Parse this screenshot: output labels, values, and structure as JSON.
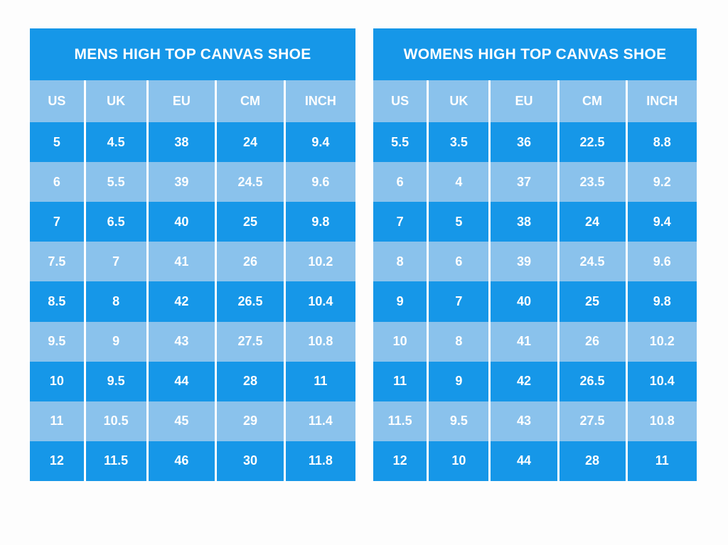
{
  "colors": {
    "primary_blue": "#1697e8",
    "light_blue": "#8ac2ec",
    "divider_white": "#ffffff",
    "text_white": "#ffffff",
    "page_background": "#fdfdfd"
  },
  "chart_data": [
    {
      "type": "table",
      "title": "MENS HIGH TOP CANVAS SHOE",
      "columns": [
        "US",
        "UK",
        "EU",
        "CM",
        "INCH"
      ],
      "rows": [
        [
          "5",
          "4.5",
          "38",
          "24",
          "9.4"
        ],
        [
          "6",
          "5.5",
          "39",
          "24.5",
          "9.6"
        ],
        [
          "7",
          "6.5",
          "40",
          "25",
          "9.8"
        ],
        [
          "7.5",
          "7",
          "41",
          "26",
          "10.2"
        ],
        [
          "8.5",
          "8",
          "42",
          "26.5",
          "10.4"
        ],
        [
          "9.5",
          "9",
          "43",
          "27.5",
          "10.8"
        ],
        [
          "10",
          "9.5",
          "44",
          "28",
          "11"
        ],
        [
          "11",
          "10.5",
          "45",
          "29",
          "11.4"
        ],
        [
          "12",
          "11.5",
          "46",
          "30",
          "11.8"
        ]
      ],
      "row_striping": "odd rows bright blue, even rows light blue"
    },
    {
      "type": "table",
      "title": "WOMENS HIGH TOP CANVAS SHOE",
      "columns": [
        "US",
        "UK",
        "EU",
        "CM",
        "INCH"
      ],
      "rows": [
        [
          "5.5",
          "3.5",
          "36",
          "22.5",
          "8.8"
        ],
        [
          "6",
          "4",
          "37",
          "23.5",
          "9.2"
        ],
        [
          "7",
          "5",
          "38",
          "24",
          "9.4"
        ],
        [
          "8",
          "6",
          "39",
          "24.5",
          "9.6"
        ],
        [
          "9",
          "7",
          "40",
          "25",
          "9.8"
        ],
        [
          "10",
          "8",
          "41",
          "26",
          "10.2"
        ],
        [
          "11",
          "9",
          "42",
          "26.5",
          "10.4"
        ],
        [
          "11.5",
          "9.5",
          "43",
          "27.5",
          "10.8"
        ],
        [
          "12",
          "10",
          "44",
          "28",
          "11"
        ]
      ],
      "row_striping": "odd rows bright blue, even rows light blue"
    }
  ]
}
